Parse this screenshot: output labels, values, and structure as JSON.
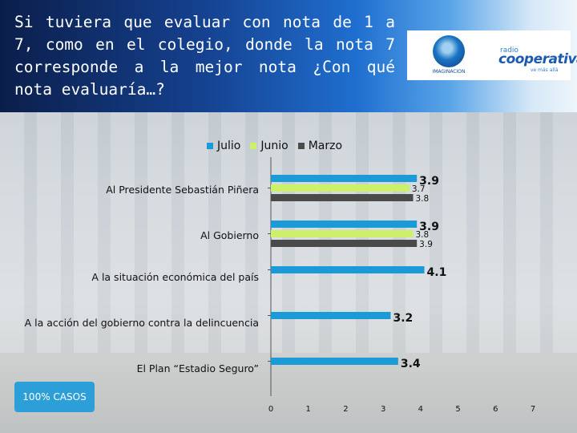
{
  "header": {
    "question": "Si tuviera que evaluar con nota de 1 a 7, como en el colegio, donde la nota 7 corresponde a la mejor nota ¿Con qué nota evaluaría…?"
  },
  "logos": {
    "imaginacion": "IMAGINACION",
    "radio_label": "radio",
    "brand": "cooperativa",
    "brand_tagline": "ve más allá"
  },
  "footnote": "100% CASOS",
  "colors": {
    "julio": "#1a9bd7",
    "junio": "#ccf06a",
    "marzo": "#4a4a4a"
  },
  "chart_data": {
    "type": "bar",
    "orientation": "horizontal",
    "categories": [
      "Al Presidente Sebastián Piñera",
      "Al Gobierno",
      "A la situación económica del país",
      "A la acción del gobierno contra la delincuencia",
      "El Plan “Estadio Seguro”"
    ],
    "series": [
      {
        "name": "Julio",
        "values": [
          3.9,
          3.9,
          4.1,
          3.2,
          3.4
        ]
      },
      {
        "name": "Junio",
        "values": [
          3.7,
          3.8,
          null,
          null,
          null
        ]
      },
      {
        "name": "Marzo",
        "values": [
          3.8,
          3.9,
          null,
          null,
          null
        ]
      }
    ],
    "xticks": [
      "0",
      "1",
      "2",
      "3",
      "4",
      "5",
      "6",
      "7"
    ],
    "xlim": [
      0,
      7
    ],
    "legend_position": "top",
    "grid": false
  }
}
